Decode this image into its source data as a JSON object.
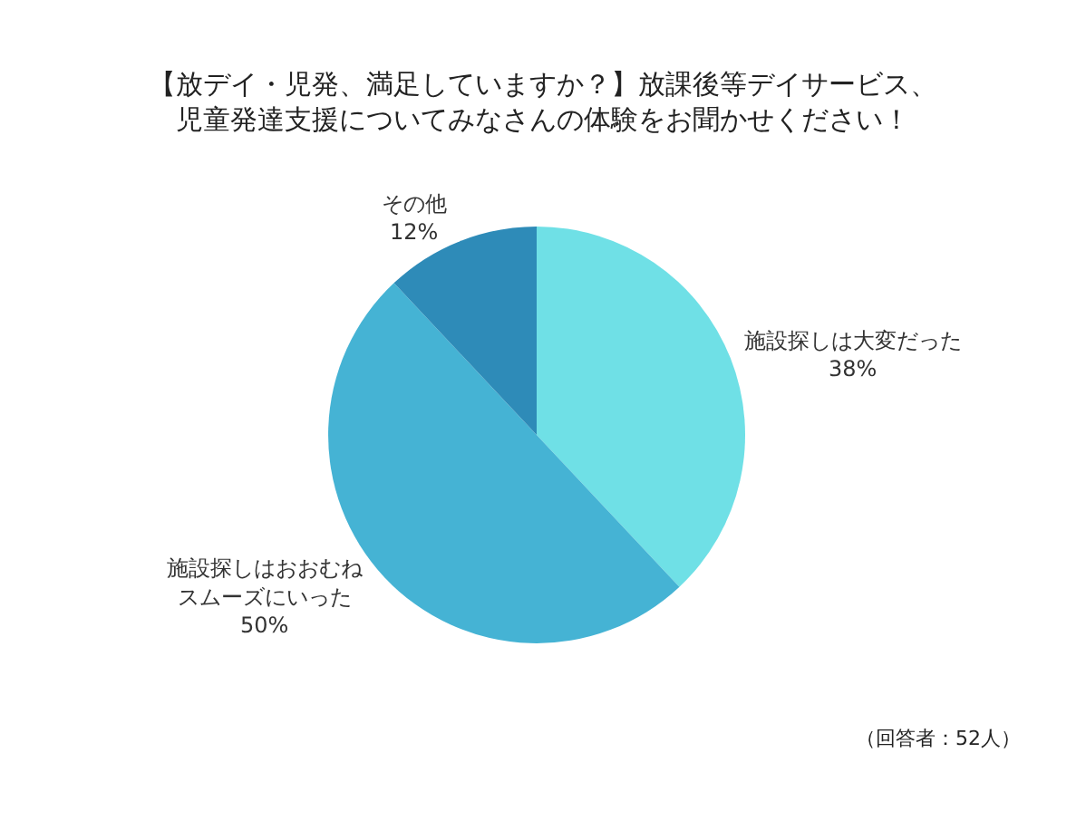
{
  "chart_data": {
    "type": "pie",
    "title": "【放デイ・児発、満足していますか？】放課後等デイサービス、児童発達支援についてみなさんの体験をお聞かせください！",
    "categories": [
      "施設探しは大変だった",
      "施設探しはおおむねスムーズにいった",
      "その他"
    ],
    "values": [
      38,
      50,
      12
    ],
    "value_labels": [
      "38%",
      "50%",
      "12%"
    ],
    "colors": [
      "#6fe0e6",
      "#45b3d4",
      "#2e8bb8"
    ],
    "annotations": [
      "（回答者：52人）"
    ]
  }
}
